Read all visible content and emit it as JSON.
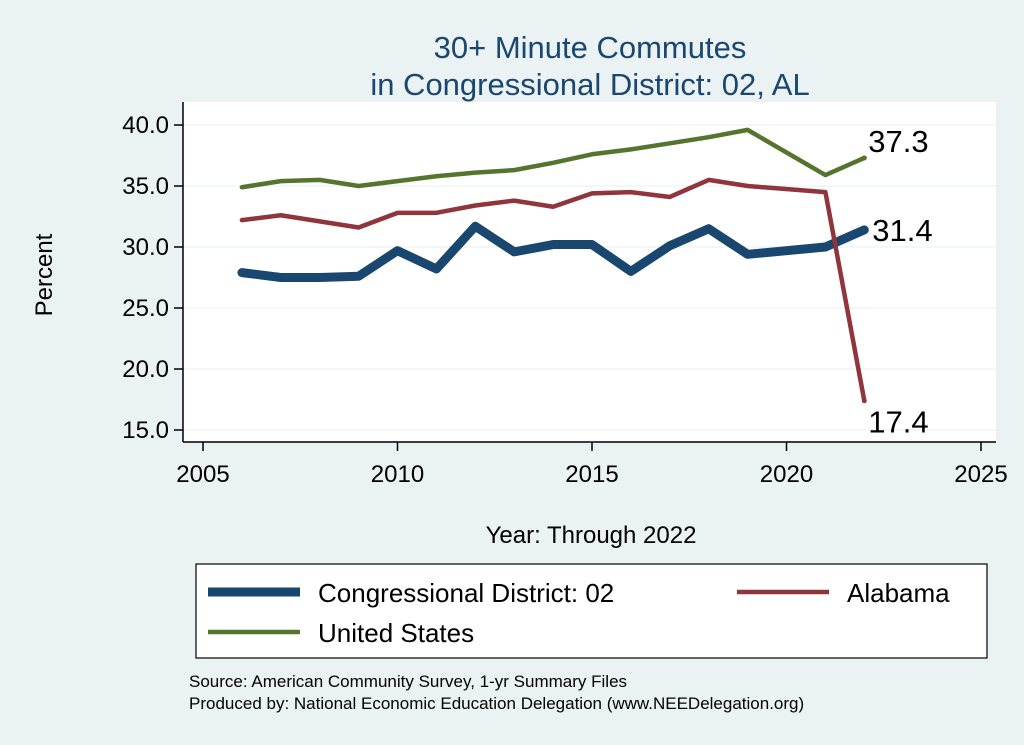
{
  "chart_data": {
    "type": "line",
    "title": [
      "30+ Minute Commutes",
      "in Congressional District:  02, AL"
    ],
    "xlabel": "Year: Through 2022",
    "ylabel": "Percent",
    "xlim": [
      2005,
      2025
    ],
    "ylim": [
      15,
      40
    ],
    "xticks": [
      2005,
      2010,
      2015,
      2020,
      2025
    ],
    "yticks": [
      15,
      20,
      25,
      30,
      35,
      40
    ],
    "ytick_labels": [
      "15.0",
      "20.0",
      "25.0",
      "30.0",
      "35.0",
      "40.0"
    ],
    "grid": true,
    "series": [
      {
        "name": "Congressional District:  02",
        "color": "#1a476f",
        "width": "thick",
        "x": [
          2006,
          2007,
          2008,
          2009,
          2010,
          2011,
          2012,
          2013,
          2014,
          2015,
          2016,
          2017,
          2018,
          2019,
          2021,
          2022
        ],
        "values": [
          27.9,
          27.5,
          27.5,
          27.6,
          29.7,
          28.2,
          31.7,
          29.6,
          30.2,
          30.2,
          28.0,
          30.1,
          31.5,
          29.4,
          30.0,
          31.4
        ],
        "end_label": "31.4"
      },
      {
        "name": "Alabama",
        "color": "#90353b",
        "width": "medium",
        "x": [
          2006,
          2007,
          2008,
          2009,
          2010,
          2011,
          2012,
          2013,
          2014,
          2015,
          2016,
          2017,
          2018,
          2019,
          2021,
          2022
        ],
        "values": [
          32.2,
          32.6,
          32.1,
          31.6,
          32.8,
          32.8,
          33.4,
          33.8,
          33.3,
          34.4,
          34.5,
          34.1,
          35.5,
          35.0,
          34.5,
          17.4
        ],
        "end_label": "17.4"
      },
      {
        "name": "United States",
        "color": "#55752f",
        "width": "medium",
        "x": [
          2006,
          2007,
          2008,
          2009,
          2010,
          2011,
          2012,
          2013,
          2014,
          2015,
          2016,
          2017,
          2018,
          2019,
          2021,
          2022
        ],
        "values": [
          34.9,
          35.4,
          35.5,
          35.0,
          35.4,
          35.8,
          36.1,
          36.3,
          36.9,
          37.6,
          38.0,
          38.5,
          39.0,
          39.6,
          35.9,
          37.3
        ],
        "end_label": "37.3"
      }
    ],
    "legend": {
      "placement": "bottom",
      "entries": [
        "Congressional District:  02",
        "Alabama",
        "United States"
      ]
    },
    "notes": [
      "Source: American Community Survey, 1-yr Summary Files",
      "Produced by: National Economic Education Delegation (www.NEEDelegation.org)"
    ]
  }
}
